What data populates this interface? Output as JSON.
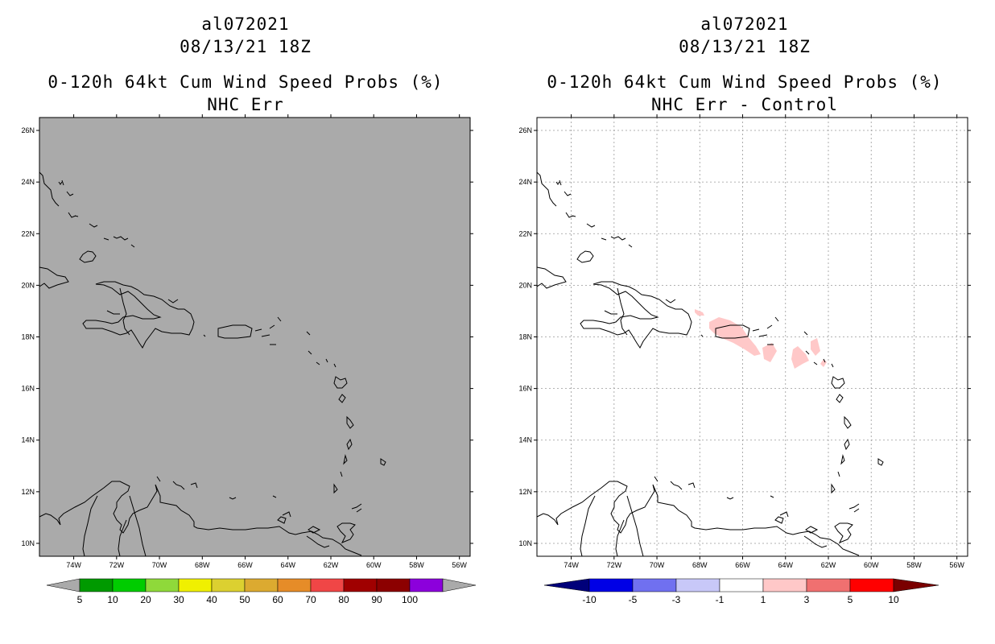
{
  "left_panel": {
    "storm_id": "al072021",
    "datetime": "08/13/21 18Z",
    "product": "0-120h 64kt Cum Wind Speed Probs (%)",
    "subtitle": "NHC Err",
    "background_color": "#aaaaaa",
    "colorbar": {
      "labels": [
        "5",
        "10",
        "20",
        "30",
        "40",
        "50",
        "60",
        "70",
        "80",
        "90",
        "100"
      ],
      "colors": [
        "#009a00",
        "#00cc00",
        "#8fd93a",
        "#f0f000",
        "#dcd030",
        "#dcaa30",
        "#e68c28",
        "#f04646",
        "#a00000",
        "#8c0000",
        "#8c00dc"
      ],
      "end_color": "#aaaaaa"
    }
  },
  "right_panel": {
    "storm_id": "al072021",
    "datetime": "08/13/21 18Z",
    "product": "0-120h 64kt Cum Wind Speed Probs (%)",
    "subtitle": "NHC Err - Control",
    "background_color": "#ffffff",
    "colorbar": {
      "labels": [
        "-10",
        "-5",
        "-3",
        "-1",
        "1",
        "3",
        "5",
        "10"
      ],
      "colors": [
        "#0000e6",
        "#7070f0",
        "#c8c8f8",
        "#ffffff",
        "#ffc8c8",
        "#f07070",
        "#ff0000"
      ],
      "low_end_color": "#00007a",
      "high_end_color": "#7a0000"
    },
    "shading_color": "#ffc8c8"
  },
  "map": {
    "lat_labels": [
      "26N",
      "24N",
      "22N",
      "20N",
      "18N",
      "16N",
      "14N",
      "12N",
      "10N"
    ],
    "lon_labels": [
      "74W",
      "72W",
      "70W",
      "68W",
      "66W",
      "64W",
      "62W",
      "60W",
      "58W",
      "56W"
    ],
    "lat_values": [
      26,
      24,
      22,
      20,
      18,
      16,
      14,
      12,
      10
    ],
    "lon_values": [
      -74,
      -72,
      -70,
      -68,
      -66,
      -64,
      -62,
      -60,
      -58,
      -56
    ],
    "lon_range": [
      -75.6,
      -55.5
    ],
    "lat_range": [
      9.5,
      26.5
    ]
  }
}
